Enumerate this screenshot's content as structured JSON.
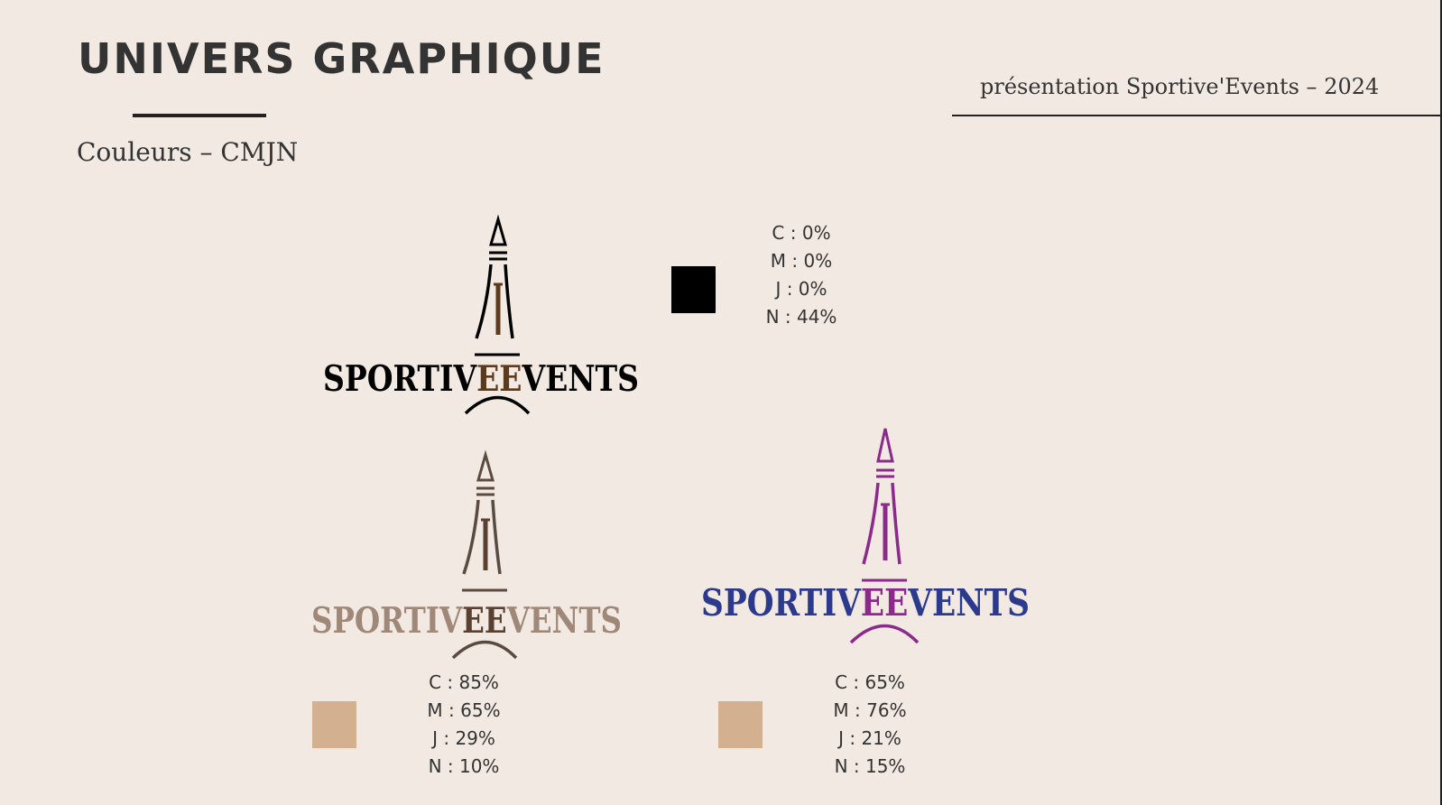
{
  "header": {
    "title": "UNIVERS GRAPHIQUE",
    "subtitle": "Couleurs – CMJN",
    "presentation": "présentation Sportive'Events – 2024"
  },
  "logo": {
    "text_left": "SPORTIV",
    "text_mid": "EE",
    "text_right": "VENTS"
  },
  "variants": [
    {
      "id": "black",
      "colors": {
        "text": "#000000",
        "accent": "#5b3a1e",
        "tower": "#000000"
      },
      "swatch_color": "#000000",
      "cmyk": [
        "C : 0%",
        "M : 0%",
        "J : 0%",
        "N : 44%"
      ]
    },
    {
      "id": "brown",
      "colors": {
        "text": "#a08878",
        "accent": "#5a4030",
        "tower": "#5a4a40"
      },
      "swatch_color": "#d3b08f",
      "cmyk": [
        "C : 85%",
        "M : 65%",
        "J : 29%",
        "N : 10%"
      ]
    },
    {
      "id": "blue-purple",
      "colors": {
        "text": "#2b3a8c",
        "accent": "#8b2a8a",
        "tower": "#8b2a8a"
      },
      "swatch_color": "#d3b08f",
      "cmyk": [
        "C : 65%",
        "M : 76%",
        "J : 21%",
        "N : 15%"
      ]
    }
  ]
}
